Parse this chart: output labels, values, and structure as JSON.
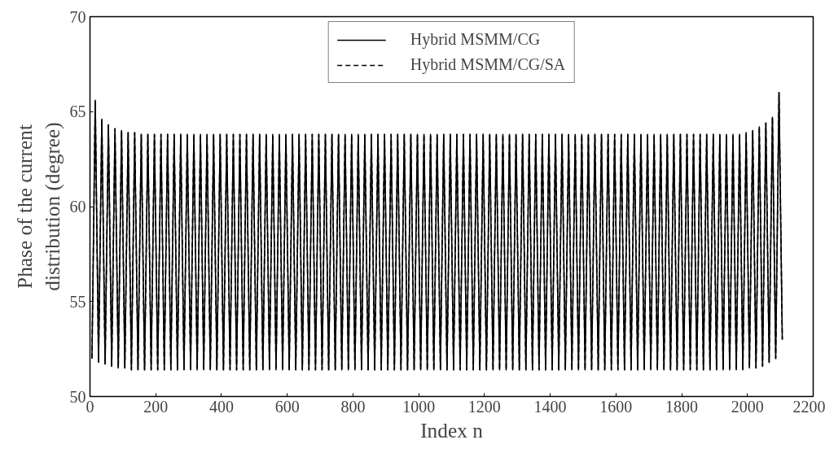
{
  "chart_data": {
    "type": "line",
    "xlabel": "Index n",
    "ylabel": "Phase of the current\ndistribution (degree)",
    "xlim": [
      0,
      2200
    ],
    "xticks": [
      0,
      200,
      400,
      600,
      800,
      1000,
      1200,
      1400,
      1600,
      1800,
      2000,
      2200
    ],
    "ylim": [
      50,
      70
    ],
    "yticks": [
      50,
      55,
      60,
      65,
      70
    ],
    "grid": false,
    "legend": "top",
    "marker": "none",
    "x": [
      6,
      16,
      26,
      36,
      46,
      56,
      66,
      76,
      86,
      96,
      106,
      116,
      126,
      136,
      146,
      156,
      166,
      176,
      186,
      196,
      206,
      216,
      226,
      236,
      246,
      256,
      266,
      276,
      286,
      296,
      306,
      316,
      326,
      336,
      346,
      356,
      366,
      376,
      386,
      396,
      406,
      416,
      426,
      436,
      446,
      456,
      466,
      476,
      486,
      496,
      506,
      516,
      526,
      536,
      546,
      556,
      566,
      576,
      586,
      596,
      606,
      616,
      626,
      636,
      646,
      656,
      666,
      676,
      686,
      696,
      706,
      716,
      726,
      736,
      746,
      756,
      766,
      776,
      786,
      796,
      806,
      816,
      826,
      836,
      846,
      856,
      866,
      876,
      886,
      896,
      906,
      916,
      926,
      936,
      946,
      956,
      966,
      976,
      986,
      996,
      1006,
      1016,
      1026,
      1036,
      1046,
      1056,
      1066,
      1076,
      1086,
      1096,
      1106,
      1116,
      1126,
      1136,
      1146,
      1156,
      1166,
      1176,
      1186,
      1196,
      1206,
      1216,
      1226,
      1236,
      1246,
      1256,
      1266,
      1276,
      1286,
      1296,
      1306,
      1316,
      1326,
      1336,
      1346,
      1356,
      1366,
      1376,
      1386,
      1396,
      1406,
      1416,
      1426,
      1436,
      1446,
      1456,
      1466,
      1476,
      1486,
      1496,
      1506,
      1516,
      1526,
      1536,
      1546,
      1556,
      1566,
      1576,
      1586,
      1596,
      1606,
      1616,
      1626,
      1636,
      1646,
      1656,
      1666,
      1676,
      1686,
      1696,
      1706,
      1716,
      1726,
      1736,
      1746,
      1756,
      1766,
      1776,
      1786,
      1796,
      1806,
      1816,
      1826,
      1836,
      1846,
      1856,
      1866,
      1876,
      1886,
      1896,
      1906,
      1916,
      1926,
      1936,
      1946,
      1956,
      1966,
      1976,
      1986,
      1996,
      2006,
      2016,
      2026,
      2036,
      2046,
      2056,
      2066,
      2076,
      2086,
      2096,
      2106
    ],
    "series": [
      {
        "name": "Hybrid MSMM/CG",
        "color": "#000000",
        "line_style": "solid",
        "values": [
          52.0,
          65.6,
          51.8,
          64.6,
          51.7,
          64.3,
          51.6,
          64.1,
          51.5,
          64.0,
          51.5,
          63.9,
          51.4,
          63.9,
          51.4,
          63.8,
          51.4,
          63.8,
          51.4,
          63.8,
          51.4,
          63.8,
          51.4,
          63.8,
          51.4,
          63.8,
          51.4,
          63.8,
          51.4,
          63.8,
          51.4,
          63.8,
          51.4,
          63.8,
          51.4,
          63.8,
          51.4,
          63.8,
          51.4,
          63.8,
          51.4,
          63.8,
          51.4,
          63.8,
          51.4,
          63.8,
          51.4,
          63.8,
          51.4,
          63.8,
          51.4,
          63.8,
          51.4,
          63.8,
          51.4,
          63.8,
          51.4,
          63.8,
          51.4,
          63.8,
          51.4,
          63.8,
          51.4,
          63.8,
          51.4,
          63.8,
          51.4,
          63.8,
          51.4,
          63.8,
          51.4,
          63.8,
          51.4,
          63.8,
          51.4,
          63.8,
          51.4,
          63.8,
          51.4,
          63.8,
          51.4,
          63.8,
          51.4,
          63.8,
          51.4,
          63.8,
          51.4,
          63.8,
          51.4,
          63.8,
          51.4,
          63.8,
          51.4,
          63.8,
          51.4,
          63.8,
          51.4,
          63.8,
          51.4,
          63.8,
          51.4,
          63.8,
          51.4,
          63.8,
          51.4,
          63.8,
          51.4,
          63.8,
          51.4,
          63.8,
          51.4,
          63.8,
          51.4,
          63.8,
          51.4,
          63.8,
          51.4,
          63.8,
          51.4,
          63.8,
          51.4,
          63.8,
          51.4,
          63.8,
          51.4,
          63.8,
          51.4,
          63.8,
          51.4,
          63.8,
          51.4,
          63.8,
          51.4,
          63.8,
          51.4,
          63.8,
          51.4,
          63.8,
          51.4,
          63.8,
          51.4,
          63.8,
          51.4,
          63.8,
          51.4,
          63.8,
          51.4,
          63.8,
          51.4,
          63.8,
          51.4,
          63.8,
          51.4,
          63.8,
          51.4,
          63.8,
          51.4,
          63.8,
          51.4,
          63.8,
          51.4,
          63.8,
          51.4,
          63.8,
          51.4,
          63.8,
          51.4,
          63.8,
          51.4,
          63.8,
          51.4,
          63.8,
          51.4,
          63.8,
          51.4,
          63.8,
          51.4,
          63.8,
          51.4,
          63.8,
          51.4,
          63.8,
          51.4,
          63.8,
          51.4,
          63.8,
          51.4,
          63.8,
          51.4,
          63.8,
          51.4,
          63.8,
          51.4,
          63.8,
          51.4,
          63.8,
          51.4,
          63.8,
          51.4,
          63.9,
          51.5,
          64.0,
          51.5,
          64.2,
          51.6,
          64.4,
          51.8,
          64.7,
          52.0,
          66.0,
          53.0
        ]
      },
      {
        "name": "Hybrid MSMM/CG/SA",
        "color": "#000000",
        "line_style": "dashed",
        "values": [
          52.0,
          65.6,
          51.8,
          64.6,
          51.7,
          64.3,
          51.6,
          64.1,
          51.5,
          64.0,
          51.5,
          63.9,
          51.4,
          63.9,
          51.4,
          63.8,
          51.4,
          63.8,
          51.4,
          63.8,
          51.4,
          63.8,
          51.4,
          63.8,
          51.4,
          63.8,
          51.4,
          63.8,
          51.4,
          63.8,
          51.4,
          63.8,
          51.4,
          63.8,
          51.4,
          63.8,
          51.4,
          63.8,
          51.4,
          63.8,
          51.4,
          63.8,
          51.4,
          63.8,
          51.4,
          63.8,
          51.4,
          63.8,
          51.4,
          63.8,
          51.4,
          63.8,
          51.4,
          63.8,
          51.4,
          63.8,
          51.4,
          63.8,
          51.4,
          63.8,
          51.4,
          63.8,
          51.4,
          63.8,
          51.4,
          63.8,
          51.4,
          63.8,
          51.4,
          63.8,
          51.4,
          63.8,
          51.4,
          63.8,
          51.4,
          63.8,
          51.4,
          63.8,
          51.4,
          63.8,
          51.4,
          63.8,
          51.4,
          63.8,
          51.4,
          63.8,
          51.4,
          63.8,
          51.4,
          63.8,
          51.4,
          63.8,
          51.4,
          63.8,
          51.4,
          63.8,
          51.4,
          63.8,
          51.4,
          63.8,
          51.4,
          63.8,
          51.4,
          63.8,
          51.4,
          63.8,
          51.4,
          63.8,
          51.4,
          63.8,
          51.4,
          63.8,
          51.4,
          63.8,
          51.4,
          63.8,
          51.4,
          63.8,
          51.4,
          63.8,
          51.4,
          63.8,
          51.4,
          63.8,
          51.4,
          63.8,
          51.4,
          63.8,
          51.4,
          63.8,
          51.4,
          63.8,
          51.4,
          63.8,
          51.4,
          63.8,
          51.4,
          63.8,
          51.4,
          63.8,
          51.4,
          63.8,
          51.4,
          63.8,
          51.4,
          63.8,
          51.4,
          63.8,
          51.4,
          63.8,
          51.4,
          63.8,
          51.4,
          63.8,
          51.4,
          63.8,
          51.4,
          63.8,
          51.4,
          63.8,
          51.4,
          63.8,
          51.4,
          63.8,
          51.4,
          63.8,
          51.4,
          63.8,
          51.4,
          63.8,
          51.4,
          63.8,
          51.4,
          63.8,
          51.4,
          63.8,
          51.4,
          63.8,
          51.4,
          63.8,
          51.4,
          63.8,
          51.4,
          63.8,
          51.4,
          63.8,
          51.4,
          63.8,
          51.4,
          63.8,
          51.4,
          63.8,
          51.4,
          63.8,
          51.4,
          63.8,
          51.4,
          63.8,
          51.4,
          63.9,
          51.5,
          64.0,
          51.5,
          64.2,
          51.6,
          64.4,
          51.8,
          64.7,
          52.0,
          66.0,
          53.0
        ]
      }
    ]
  }
}
